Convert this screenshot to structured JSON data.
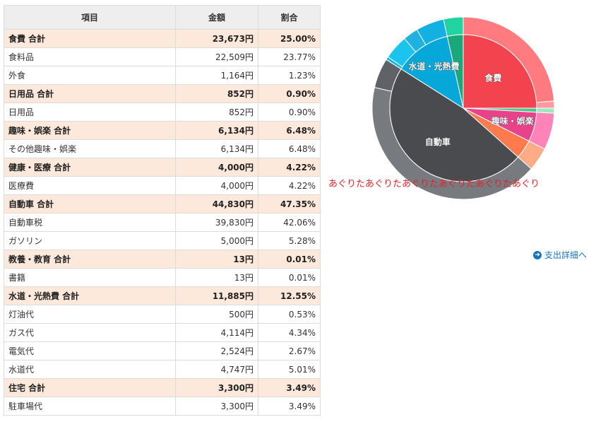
{
  "table": {
    "headers": {
      "item": "項目",
      "amount": "金額",
      "ratio": "割合"
    },
    "rows": [
      {
        "label": "食費 合計",
        "amount": "23,673円",
        "ratio": "25.00%",
        "total": true
      },
      {
        "label": "食料品",
        "amount": "22,509円",
        "ratio": "23.77%",
        "total": false
      },
      {
        "label": "外食",
        "amount": "1,164円",
        "ratio": "1.23%",
        "total": false
      },
      {
        "label": "日用品 合計",
        "amount": "852円",
        "ratio": "0.90%",
        "total": true
      },
      {
        "label": "日用品",
        "amount": "852円",
        "ratio": "0.90%",
        "total": false
      },
      {
        "label": "趣味・娯楽 合計",
        "amount": "6,134円",
        "ratio": "6.48%",
        "total": true
      },
      {
        "label": "その他趣味・娯楽",
        "amount": "6,134円",
        "ratio": "6.48%",
        "total": false
      },
      {
        "label": "健康・医療 合計",
        "amount": "4,000円",
        "ratio": "4.22%",
        "total": true
      },
      {
        "label": "医療費",
        "amount": "4,000円",
        "ratio": "4.22%",
        "total": false
      },
      {
        "label": "自動車 合計",
        "amount": "44,830円",
        "ratio": "47.35%",
        "total": true
      },
      {
        "label": "自動車税",
        "amount": "39,830円",
        "ratio": "42.06%",
        "total": false
      },
      {
        "label": "ガソリン",
        "amount": "5,000円",
        "ratio": "5.28%",
        "total": false
      },
      {
        "label": "教養・教育 合計",
        "amount": "13円",
        "ratio": "0.01%",
        "total": true
      },
      {
        "label": "書籍",
        "amount": "13円",
        "ratio": "0.01%",
        "total": false
      },
      {
        "label": "水道・光熱費 合計",
        "amount": "11,885円",
        "ratio": "12.55%",
        "total": true
      },
      {
        "label": "灯油代",
        "amount": "500円",
        "ratio": "0.53%",
        "total": false
      },
      {
        "label": "ガス代",
        "amount": "4,114円",
        "ratio": "4.34%",
        "total": false
      },
      {
        "label": "電気代",
        "amount": "2,524円",
        "ratio": "2.67%",
        "total": false
      },
      {
        "label": "水道代",
        "amount": "4,747円",
        "ratio": "5.01%",
        "total": false
      },
      {
        "label": "住宅 合計",
        "amount": "3,300円",
        "ratio": "3.49%",
        "total": true
      },
      {
        "label": "駐車場代",
        "amount": "3,300円",
        "ratio": "3.49%",
        "total": false
      }
    ]
  },
  "chart_data": {
    "type": "pie",
    "inner_labels": [
      "食費",
      "趣味・娯楽",
      "自動車",
      "水道・光熱費"
    ],
    "categories": [
      {
        "name": "食費",
        "value": 25.0,
        "color": "#f2434e",
        "label": "食費",
        "sub": [
          {
            "name": "食料品",
            "value": 23.77,
            "color": "#ff7b80"
          },
          {
            "name": "外食",
            "value": 1.23,
            "color": "#ff9aa0"
          }
        ]
      },
      {
        "name": "日用品",
        "value": 0.9,
        "color": "#4cc98a",
        "label": "",
        "sub": [
          {
            "name": "日用品",
            "value": 0.9,
            "color": "#9ee8c1"
          }
        ]
      },
      {
        "name": "趣味・娯楽",
        "value": 6.48,
        "color": "#e8438a",
        "label": "趣味・娯楽",
        "sub": [
          {
            "name": "その他趣味・娯楽",
            "value": 6.48,
            "color": "#ff82b8"
          }
        ]
      },
      {
        "name": "健康・医療",
        "value": 4.22,
        "color": "#ff7a4d",
        "label": "",
        "sub": [
          {
            "name": "医療費",
            "value": 4.22,
            "color": "#ffab86"
          }
        ]
      },
      {
        "name": "自動車",
        "value": 47.35,
        "color": "#4a4b4f",
        "label": "自動車",
        "sub": [
          {
            "name": "自動車税",
            "value": 42.06,
            "color": "#777a7e"
          },
          {
            "name": "ガソリン",
            "value": 5.28,
            "color": "#5f6266"
          }
        ]
      },
      {
        "name": "教養・教育",
        "value": 0.01,
        "color": "#a0a0a0",
        "label": "",
        "sub": [
          {
            "name": "書籍",
            "value": 0.01,
            "color": "#c0c0c0"
          }
        ]
      },
      {
        "name": "水道・光熱費",
        "value": 12.55,
        "color": "#05a8d8",
        "label": "水道・光熱費",
        "sub": [
          {
            "name": "灯油代",
            "value": 0.53,
            "color": "#0bb6e6"
          },
          {
            "name": "ガス代",
            "value": 4.34,
            "color": "#1bc3ef"
          },
          {
            "name": "電気代",
            "value": 2.67,
            "color": "#21b1e0"
          },
          {
            "name": "水道代",
            "value": 5.01,
            "color": "#13b0e3"
          }
        ]
      },
      {
        "name": "住宅",
        "value": 3.49,
        "color": "#1aa77a",
        "label": "",
        "sub": [
          {
            "name": "駐車場代",
            "value": 3.49,
            "color": "#22d3a2"
          }
        ]
      }
    ]
  },
  "overlay_text": "あぐりたあぐりたあぐりたあぐりたあぐりたあぐり",
  "detail_link": {
    "label": "支出詳細へ",
    "icon": "arrow-circle-right-icon"
  }
}
